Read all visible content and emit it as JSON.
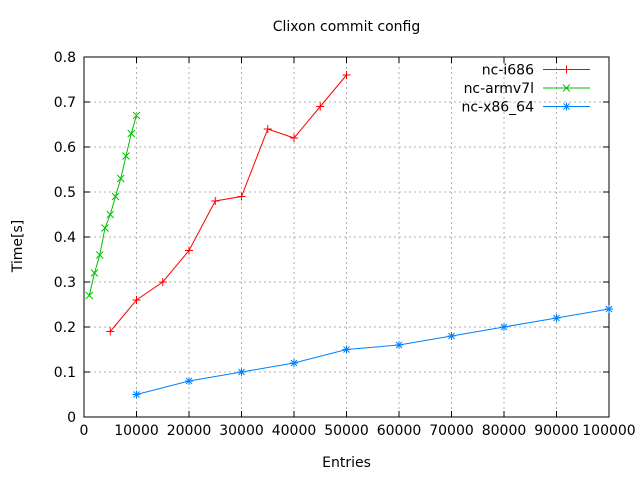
{
  "chart_data": {
    "type": "line",
    "title": "Clixon commit config",
    "xlabel": "Entries",
    "ylabel": "Time[s]",
    "xlim": [
      0,
      100000
    ],
    "ylim": [
      0,
      0.8
    ],
    "grid": true,
    "legend_position": "top-right-inside-no-box",
    "xticks": {
      "values": [
        0,
        10000,
        20000,
        30000,
        40000,
        50000,
        60000,
        70000,
        80000,
        90000,
        100000
      ],
      "labels": [
        "0",
        "10000",
        "20000",
        "30000",
        "40000",
        "50000",
        "60000",
        "70000",
        "80000",
        "90000",
        "100000"
      ]
    },
    "yticks": {
      "values": [
        0,
        0.1,
        0.2,
        0.3,
        0.4,
        0.5,
        0.6,
        0.7,
        0.8
      ],
      "labels": [
        "0",
        "0.1",
        "0.2",
        "0.3",
        "0.4",
        "0.5",
        "0.6",
        "0.7",
        "0.8"
      ]
    },
    "series": [
      {
        "name": "nc-i686",
        "color": "#ff0000",
        "marker": "plus",
        "x": [
          5000,
          10000,
          15000,
          20000,
          25000,
          30000,
          35000,
          40000,
          45000,
          50000
        ],
        "y": [
          0.19,
          0.26,
          0.3,
          0.37,
          0.48,
          0.49,
          0.64,
          0.62,
          0.69,
          0.76
        ]
      },
      {
        "name": "nc-armv7l",
        "color": "#00c000",
        "marker": "cross",
        "x": [
          1000,
          2000,
          3000,
          4000,
          5000,
          6000,
          7000,
          8000,
          9000,
          10000
        ],
        "y": [
          0.27,
          0.32,
          0.36,
          0.42,
          0.45,
          0.49,
          0.53,
          0.58,
          0.63,
          0.67
        ]
      },
      {
        "name": "nc-x86_64",
        "color": "#0080ff",
        "marker": "asterisk",
        "x": [
          10000,
          20000,
          30000,
          40000,
          50000,
          60000,
          70000,
          80000,
          90000,
          100000
        ],
        "y": [
          0.05,
          0.08,
          0.1,
          0.12,
          0.15,
          0.16,
          0.18,
          0.2,
          0.22,
          0.24
        ]
      }
    ]
  }
}
